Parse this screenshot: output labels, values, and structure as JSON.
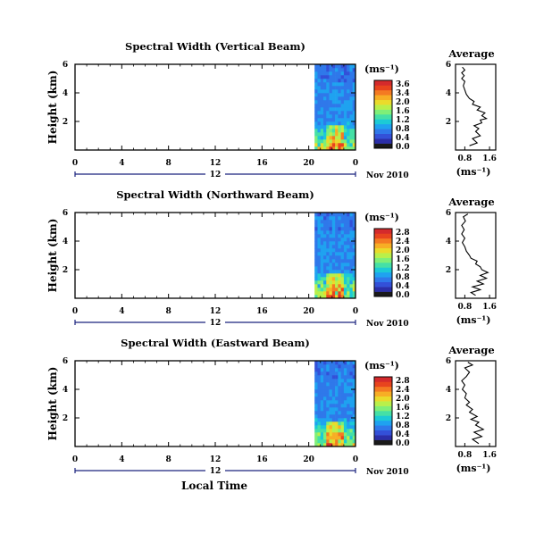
{
  "colors": {
    "scale": [
      "#1a1a1a",
      "#2b2ea8",
      "#3350d8",
      "#2f78ea",
      "#1fa2f0",
      "#1ccad6",
      "#45e0a6",
      "#7fef78",
      "#b9f04a",
      "#eadb2b",
      "#f7ae25",
      "#f47a22",
      "#e8441e",
      "#d42a2c"
    ]
  },
  "footer": {
    "xlabel": "Local Time"
  },
  "chart_data": [
    {
      "type": "heatmap",
      "title": "Spectral Width (Vertical Beam)",
      "ylabel": "Height (km)",
      "xticks": [
        "0",
        "4",
        "8",
        "12",
        "16",
        "20",
        "0"
      ],
      "yticks": [
        "6",
        "4",
        "2"
      ],
      "xlim": [
        0,
        24
      ],
      "ylim": [
        0,
        6
      ],
      "data_x_range": [
        20.5,
        24
      ],
      "date_center": "12",
      "date_right": "Nov 2010",
      "colorbar": {
        "unit": "(ms⁻¹)",
        "ticks": [
          "3.6",
          "3.4",
          "2.0",
          "1.6",
          "1.2",
          "0.8",
          "0.4",
          "0.0"
        ]
      },
      "average": {
        "title": "Average",
        "xlabel": "(ms⁻¹)",
        "xticks": [
          "0.8",
          "1.6"
        ],
        "yticks": [
          "6",
          "4",
          "2"
        ],
        "xlim": [
          0.5,
          1.8
        ],
        "ylim": [
          0,
          6
        ],
        "profile": [
          [
            0.95,
            0.3
          ],
          [
            1.2,
            0.5
          ],
          [
            1.05,
            0.8
          ],
          [
            1.3,
            1.0
          ],
          [
            1.15,
            1.3
          ],
          [
            1.25,
            1.5
          ],
          [
            1.1,
            1.7
          ],
          [
            1.35,
            1.9
          ],
          [
            1.3,
            2.1
          ],
          [
            1.5,
            2.2
          ],
          [
            1.35,
            2.4
          ],
          [
            1.45,
            2.6
          ],
          [
            1.2,
            2.8
          ],
          [
            1.3,
            3.0
          ],
          [
            1.05,
            3.2
          ],
          [
            1.1,
            3.4
          ],
          [
            0.95,
            3.6
          ],
          [
            0.85,
            3.9
          ],
          [
            0.8,
            4.2
          ],
          [
            0.75,
            4.5
          ],
          [
            0.8,
            4.8
          ],
          [
            0.7,
            5.0
          ],
          [
            0.78,
            5.2
          ],
          [
            0.7,
            5.4
          ],
          [
            0.8,
            5.6
          ],
          [
            0.72,
            5.8
          ]
        ]
      }
    },
    {
      "type": "heatmap",
      "title": "Spectral Width (Northward Beam)",
      "ylabel": "Height (km)",
      "xticks": [
        "0",
        "4",
        "8",
        "12",
        "16",
        "20",
        "0"
      ],
      "yticks": [
        "6",
        "4",
        "2"
      ],
      "xlim": [
        0,
        24
      ],
      "ylim": [
        0,
        6
      ],
      "data_x_range": [
        20.5,
        24
      ],
      "date_center": "12",
      "date_right": "Nov 2010",
      "colorbar": {
        "unit": "(ms⁻¹)",
        "ticks": [
          "2.8",
          "2.4",
          "2.0",
          "1.6",
          "1.2",
          "0.8",
          "0.4",
          "0.0"
        ]
      },
      "average": {
        "title": "Average",
        "xlabel": "(ms⁻¹)",
        "xticks": [
          "0.8",
          "1.6"
        ],
        "yticks": [
          "6",
          "4",
          "2"
        ],
        "xlim": [
          0.5,
          1.8
        ],
        "ylim": [
          0,
          6
        ],
        "profile": [
          [
            1.15,
            0.2
          ],
          [
            1.0,
            0.4
          ],
          [
            1.3,
            0.6
          ],
          [
            1.05,
            0.8
          ],
          [
            1.4,
            1.0
          ],
          [
            1.2,
            1.2
          ],
          [
            1.5,
            1.4
          ],
          [
            1.3,
            1.6
          ],
          [
            1.55,
            1.8
          ],
          [
            1.35,
            2.0
          ],
          [
            1.3,
            2.2
          ],
          [
            1.15,
            2.4
          ],
          [
            1.2,
            2.6
          ],
          [
            1.0,
            2.8
          ],
          [
            0.95,
            3.0
          ],
          [
            0.85,
            3.3
          ],
          [
            0.8,
            3.6
          ],
          [
            0.72,
            3.9
          ],
          [
            0.8,
            4.2
          ],
          [
            0.7,
            4.5
          ],
          [
            0.78,
            4.8
          ],
          [
            0.7,
            5.1
          ],
          [
            0.82,
            5.4
          ],
          [
            0.75,
            5.7
          ],
          [
            0.9,
            5.9
          ]
        ]
      }
    },
    {
      "type": "heatmap",
      "title": "Spectral Width (Eastward Beam)",
      "ylabel": "Height (km)",
      "xticks": [
        "0",
        "4",
        "8",
        "12",
        "16",
        "20",
        "0"
      ],
      "yticks": [
        "6",
        "4",
        "2"
      ],
      "xlim": [
        0,
        24
      ],
      "ylim": [
        0,
        6
      ],
      "data_x_range": [
        20.5,
        24
      ],
      "date_center": "12",
      "date_right": "Nov 2010",
      "colorbar": {
        "unit": "(ms⁻¹)",
        "ticks": [
          "2.8",
          "2.4",
          "2.0",
          "1.6",
          "1.2",
          "0.8",
          "0.4",
          "0.0"
        ]
      },
      "average": {
        "title": "Average",
        "xlabel": "(ms⁻¹)",
        "xticks": [
          "0.8",
          "1.6"
        ],
        "yticks": [
          "6",
          "4",
          "2"
        ],
        "xlim": [
          0.5,
          1.8
        ],
        "ylim": [
          0,
          6
        ],
        "profile": [
          [
            1.25,
            0.2
          ],
          [
            1.05,
            0.5
          ],
          [
            1.35,
            0.7
          ],
          [
            1.1,
            1.0
          ],
          [
            1.4,
            1.2
          ],
          [
            1.15,
            1.5
          ],
          [
            1.25,
            1.7
          ],
          [
            1.0,
            1.9
          ],
          [
            1.2,
            2.1
          ],
          [
            0.95,
            2.4
          ],
          [
            1.05,
            2.6
          ],
          [
            0.85,
            2.9
          ],
          [
            0.95,
            3.1
          ],
          [
            0.8,
            3.4
          ],
          [
            0.85,
            3.7
          ],
          [
            0.72,
            4.0
          ],
          [
            0.8,
            4.3
          ],
          [
            0.7,
            4.6
          ],
          [
            0.85,
            4.9
          ],
          [
            0.95,
            5.2
          ],
          [
            0.8,
            5.5
          ],
          [
            1.05,
            5.7
          ],
          [
            0.9,
            5.9
          ]
        ]
      }
    }
  ]
}
